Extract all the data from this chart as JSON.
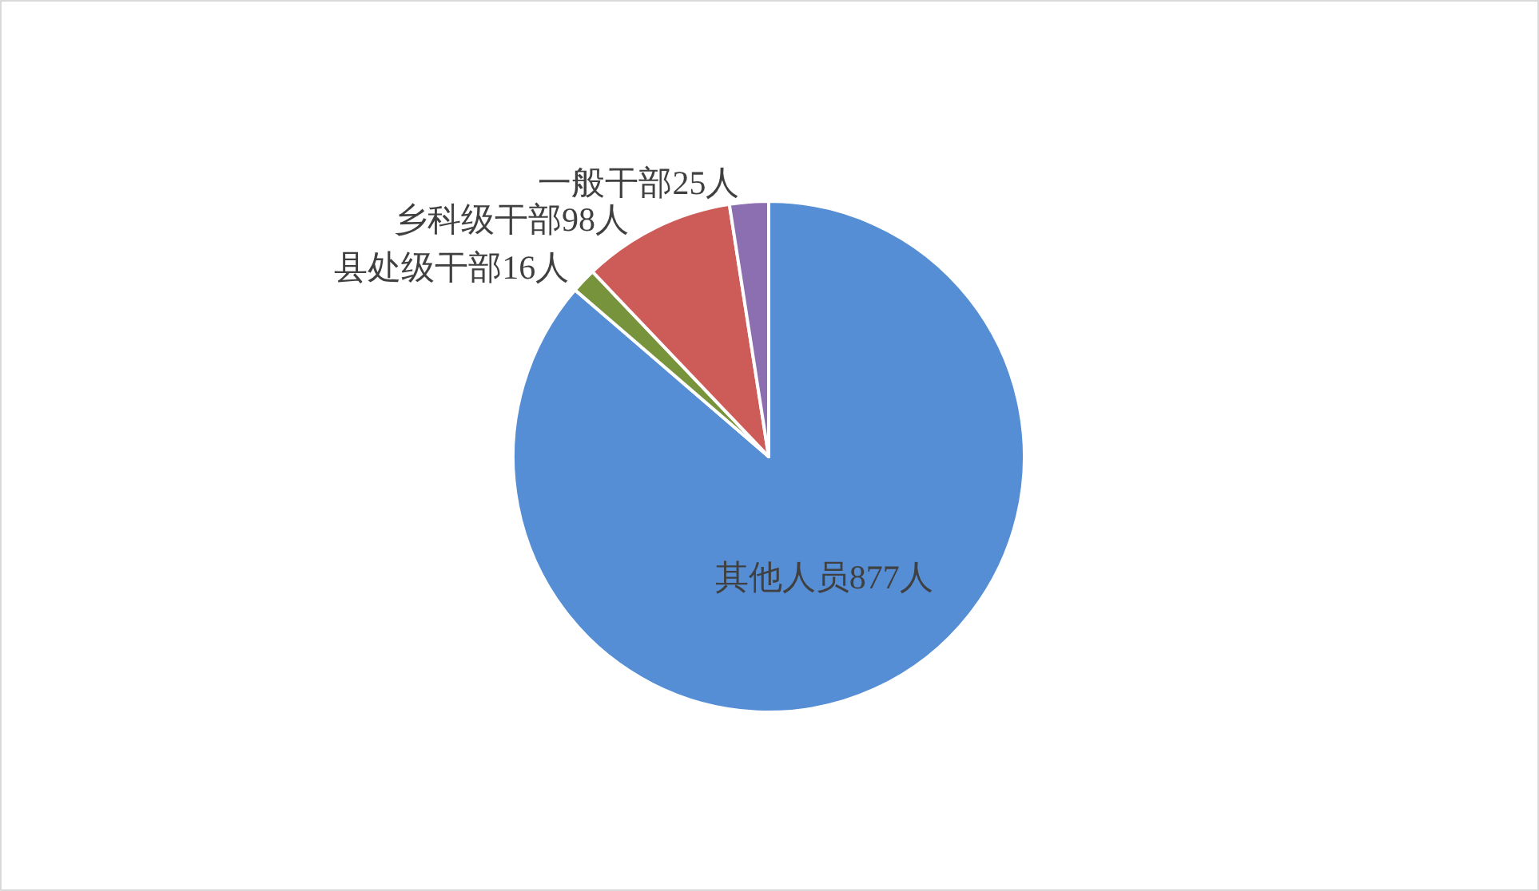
{
  "chart_data": {
    "type": "pie",
    "categories": [
      "其他人员",
      "县处级干部",
      "乡科级干部",
      "一般干部"
    ],
    "values": [
      877,
      16,
      98,
      25
    ],
    "colors": [
      "#558ed5",
      "#77933c",
      "#cd5b58",
      "#8b6fb0"
    ],
    "value_labels": [
      "877人",
      "16人",
      "98人",
      "25人"
    ]
  }
}
